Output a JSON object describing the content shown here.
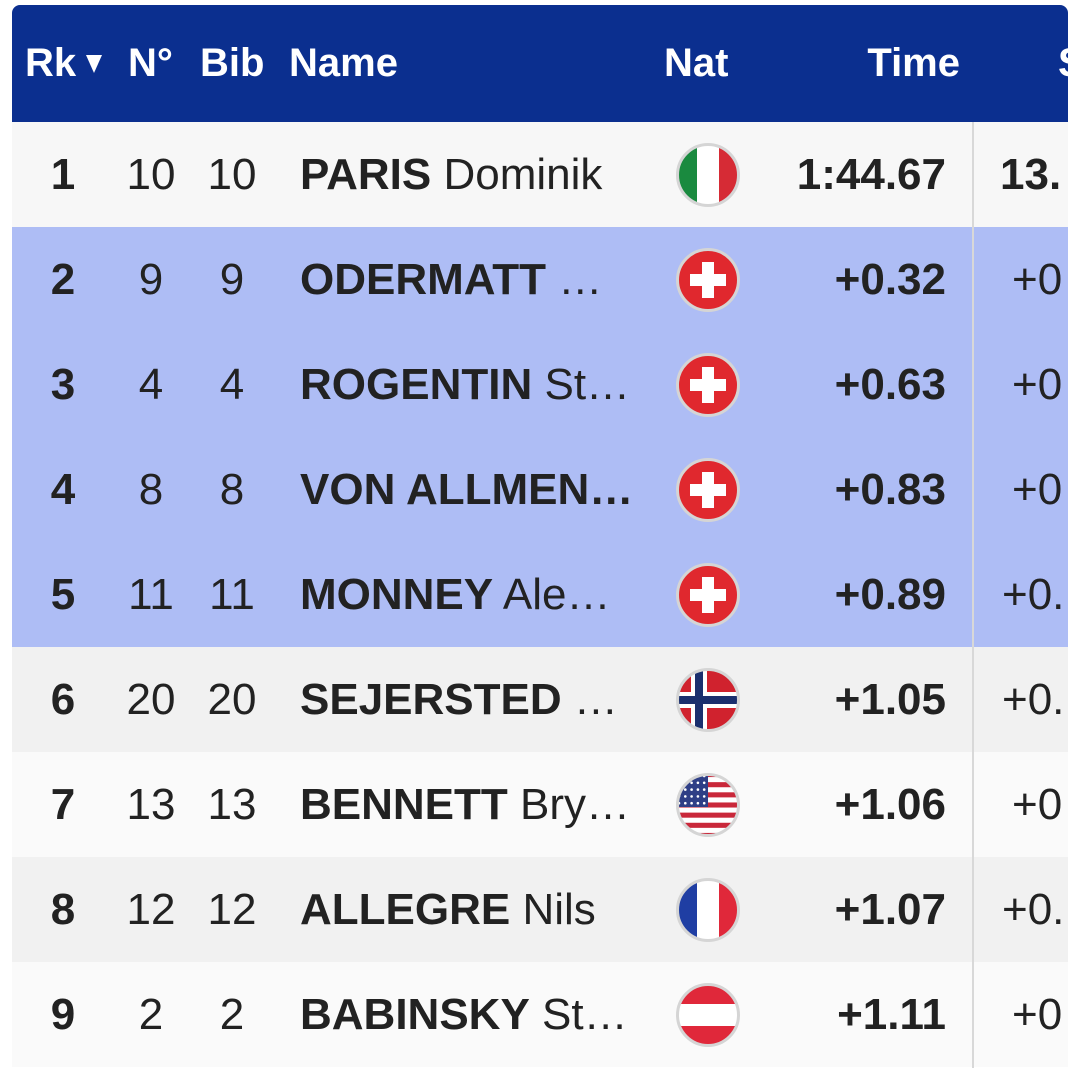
{
  "table": {
    "header": {
      "rk": "Rk",
      "no": "N°",
      "bib": "Bib",
      "name": "Name",
      "nat": "Nat",
      "time": "Time",
      "next": "S"
    },
    "rows": [
      {
        "rk": 1,
        "no": 10,
        "bib": 10,
        "surname": "PARIS",
        "given": "Dominik",
        "time": "1:44.67",
        "next": "13."
      },
      {
        "rk": 2,
        "no": 9,
        "bib": 9,
        "surname": "ODERMATT",
        "given": "…",
        "time": "+0.32",
        "next": "+0"
      },
      {
        "rk": 3,
        "no": 4,
        "bib": 4,
        "surname": "ROGENTIN",
        "given": "St…",
        "time": "+0.63",
        "next": "+0"
      },
      {
        "rk": 4,
        "no": 8,
        "bib": 8,
        "surname": "VON ALLMEN…",
        "given": "",
        "time": "+0.83",
        "next": "+0"
      },
      {
        "rk": 5,
        "no": 11,
        "bib": 11,
        "surname": "MONNEY",
        "given": "Ale…",
        "time": "+0.89",
        "next": "+0."
      },
      {
        "rk": 6,
        "no": 20,
        "bib": 20,
        "surname": "SEJERSTED",
        "given": "…",
        "time": "+1.05",
        "next": "+0."
      },
      {
        "rk": 7,
        "no": 13,
        "bib": 13,
        "surname": "BENNETT",
        "given": "Bry…",
        "time": "+1.06",
        "next": "+0"
      },
      {
        "rk": 8,
        "no": 12,
        "bib": 12,
        "surname": "ALLEGRE",
        "given": "Nils",
        "time": "+1.07",
        "next": "+0."
      },
      {
        "rk": 9,
        "no": 2,
        "bib": 2,
        "surname": "BABINSKY",
        "given": "St…",
        "time": "+1.11",
        "next": "+0"
      }
    ]
  }
}
